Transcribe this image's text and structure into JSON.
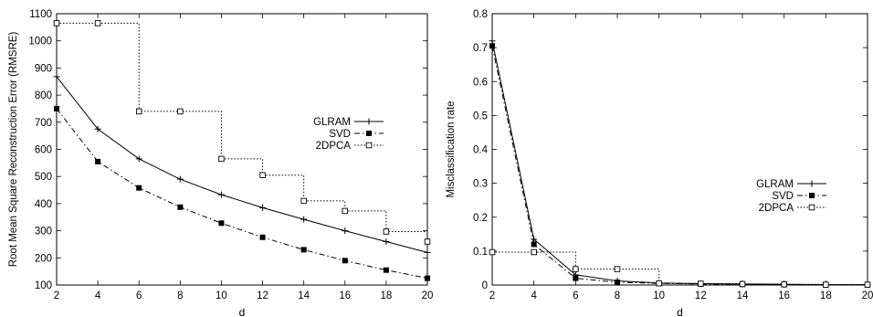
{
  "chart_data": [
    {
      "type": "line",
      "title": "",
      "xlabel": "d",
      "ylabel": "Root Mean Square Reconstruction Error (RMSRE)",
      "x": [
        2,
        4,
        6,
        8,
        10,
        12,
        14,
        16,
        18,
        20
      ],
      "xlim": [
        2,
        20
      ],
      "ylim": [
        100,
        1100
      ],
      "xticks": [
        2,
        4,
        6,
        8,
        10,
        12,
        14,
        16,
        18,
        20
      ],
      "yticks": [
        100,
        200,
        300,
        400,
        500,
        600,
        700,
        800,
        900,
        1000,
        1100
      ],
      "grid": false,
      "legend_position": "right-middle",
      "series": [
        {
          "name": "GLRAM",
          "style": "solid",
          "marker": "plus",
          "step": false,
          "values": [
            868,
            675,
            565,
            490,
            433,
            385,
            342,
            300,
            260,
            220
          ]
        },
        {
          "name": "SVD",
          "style": "dashdot",
          "marker": "filled-square",
          "step": false,
          "values": [
            750,
            555,
            458,
            387,
            328,
            276,
            230,
            190,
            155,
            125
          ]
        },
        {
          "name": "2DPCA",
          "style": "dotted",
          "marker": "open-square",
          "step": true,
          "values": [
            1065,
            1065,
            740,
            740,
            565,
            505,
            410,
            373,
            297,
            260
          ]
        }
      ]
    },
    {
      "type": "line",
      "title": "",
      "xlabel": "d",
      "ylabel": "Misclassification rate",
      "x": [
        2,
        4,
        6,
        8,
        10,
        12,
        14,
        16,
        18,
        20
      ],
      "xlim": [
        2,
        20
      ],
      "ylim": [
        0,
        0.8
      ],
      "xticks": [
        2,
        4,
        6,
        8,
        10,
        12,
        14,
        16,
        18,
        20
      ],
      "yticks": [
        0,
        0.1,
        0.2,
        0.3,
        0.4,
        0.5,
        0.6,
        0.7,
        0.8
      ],
      "grid": false,
      "legend_position": "right-middle",
      "series": [
        {
          "name": "GLRAM",
          "style": "solid",
          "marker": "plus",
          "step": false,
          "values": [
            0.72,
            0.135,
            0.03,
            0.012,
            0.006,
            0.004,
            0.003,
            0.002,
            0.001,
            0.001
          ]
        },
        {
          "name": "SVD",
          "style": "dashdot",
          "marker": "filled-square",
          "step": false,
          "values": [
            0.705,
            0.12,
            0.02,
            0.008,
            0.005,
            0.003,
            0.002,
            0.001,
            0.001,
            0.001
          ]
        },
        {
          "name": "2DPCA",
          "style": "dotted",
          "marker": "open-square",
          "step": true,
          "values": [
            0.097,
            0.097,
            0.047,
            0.047,
            0.005,
            0.004,
            0.003,
            0.002,
            0.001,
            0.001
          ]
        }
      ]
    }
  ]
}
